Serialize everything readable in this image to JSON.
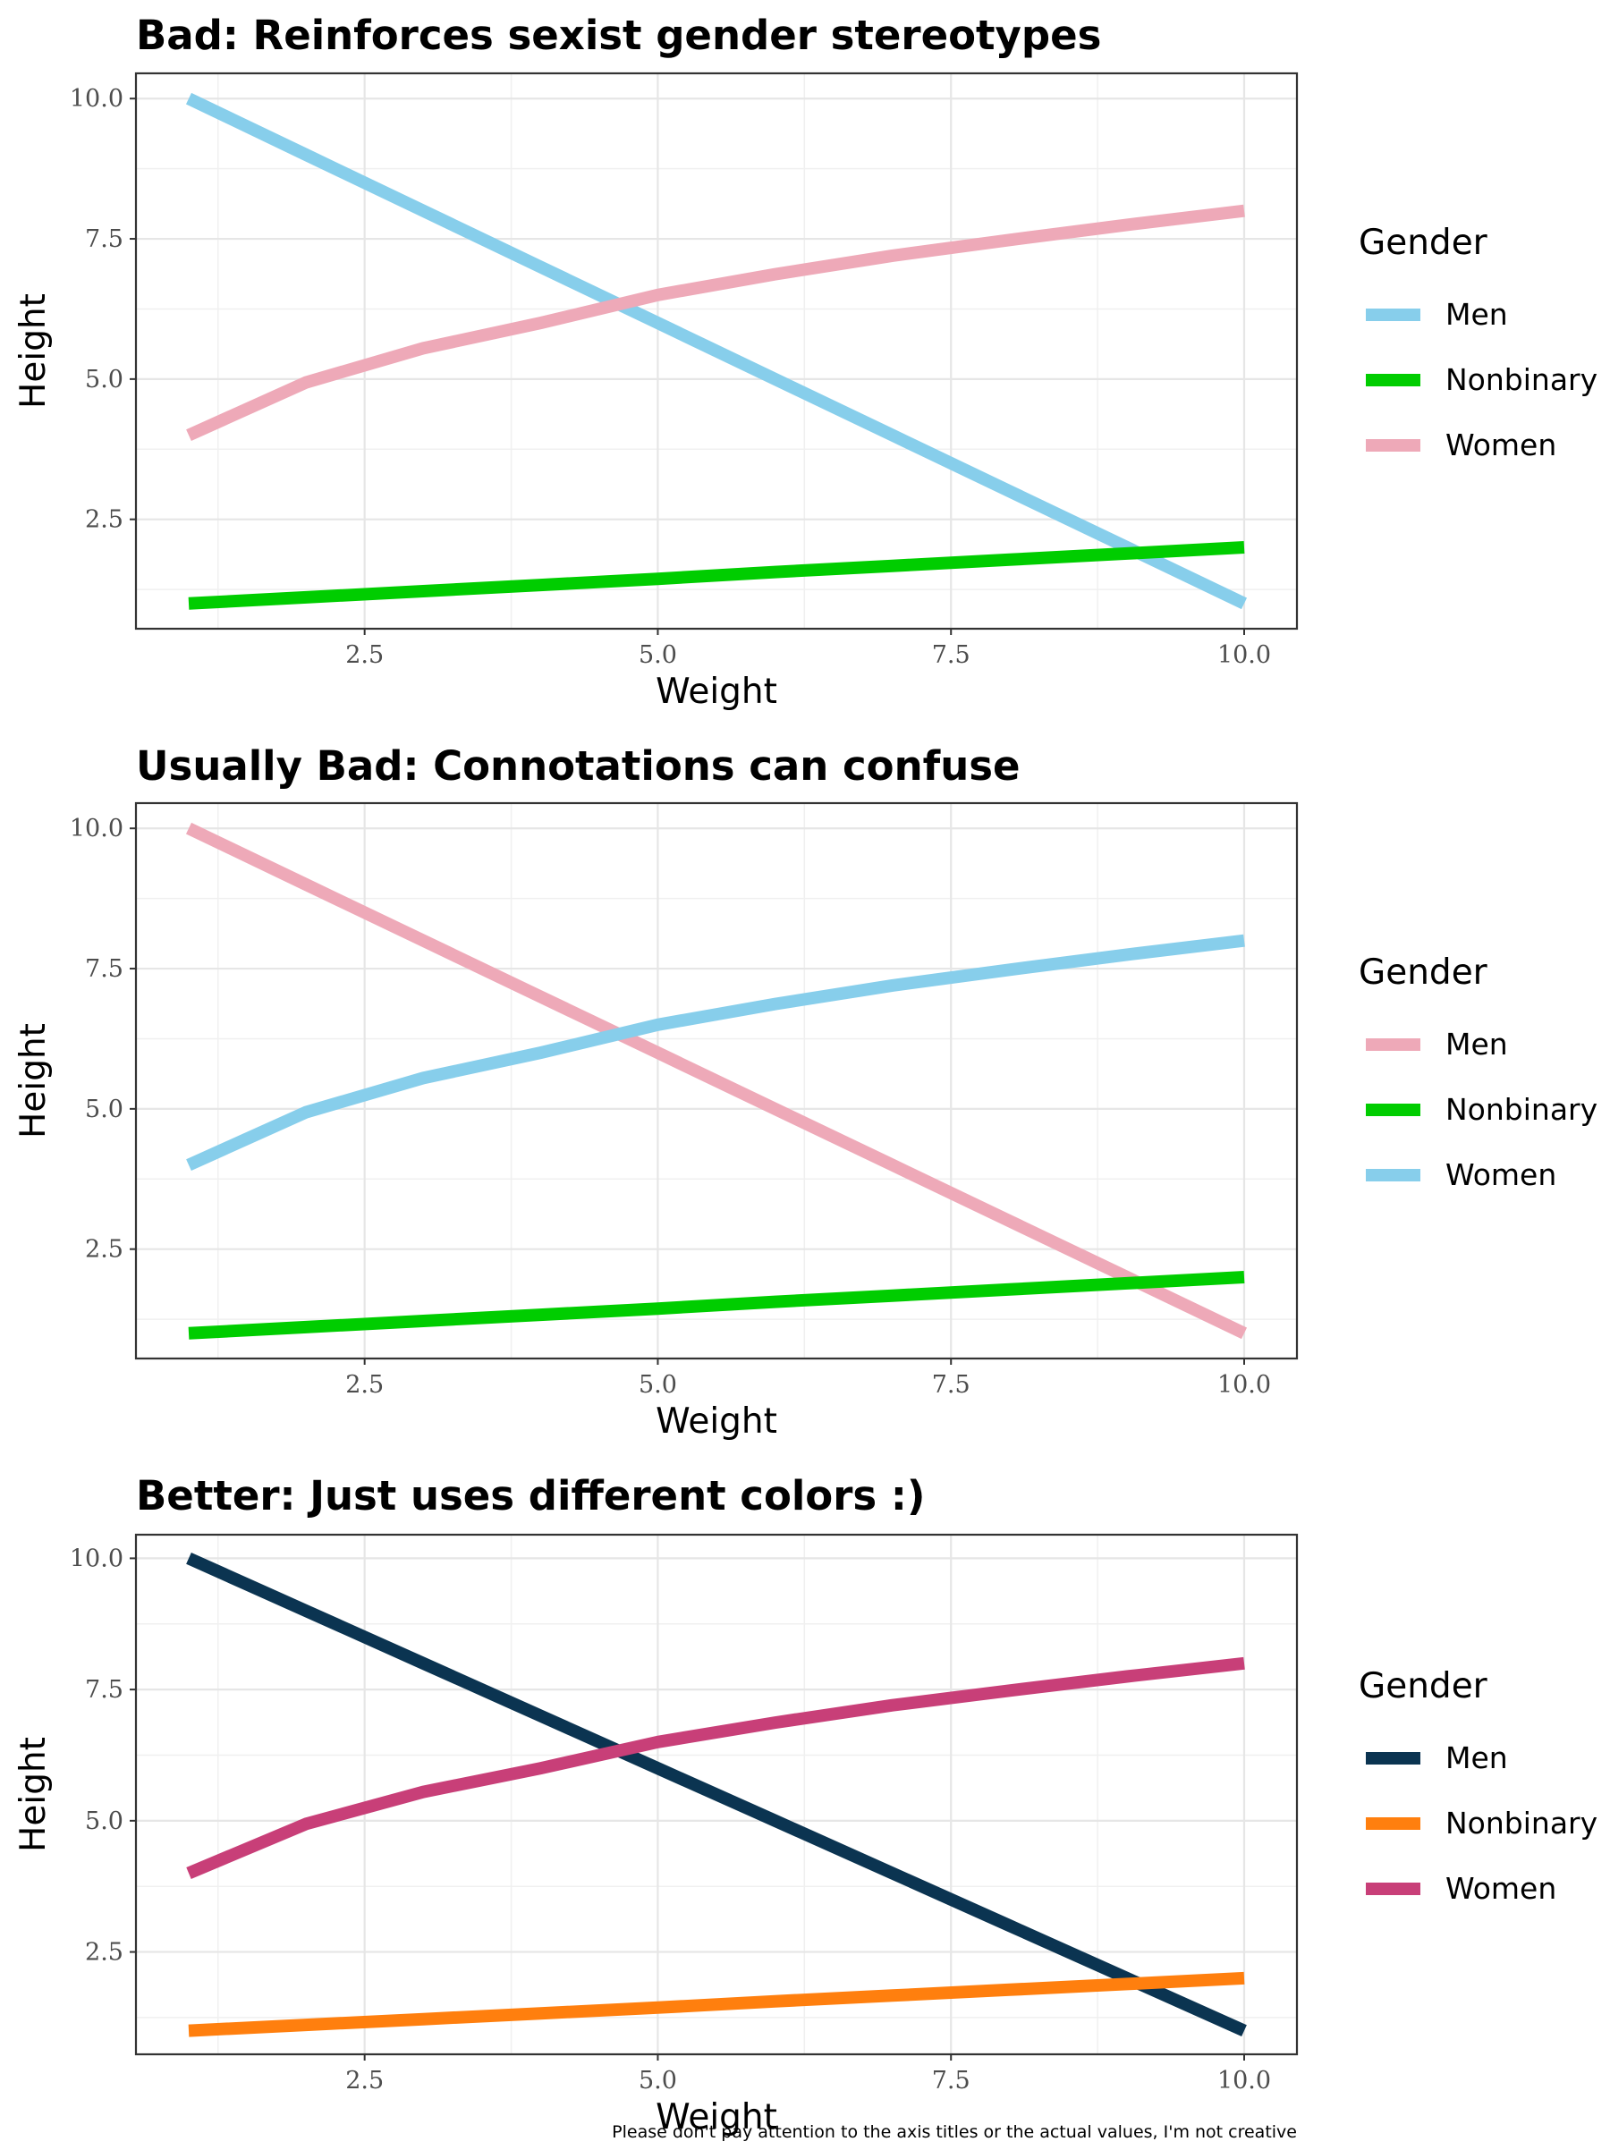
{
  "chart_data": [
    {
      "type": "line",
      "title": "Bad: Reinforces sexist gender stereotypes",
      "xlabel": "Weight",
      "ylabel": "Height",
      "xlim": [
        0.55,
        10.45
      ],
      "ylim": [
        0.55,
        10.45
      ],
      "x_ticks": [
        2.5,
        5.0,
        7.5,
        10.0
      ],
      "y_ticks": [
        2.5,
        5.0,
        7.5,
        10.0
      ],
      "x_tick_labels": [
        "2.5",
        "5.0",
        "7.5",
        "10.0"
      ],
      "y_tick_labels": [
        "2.5",
        "5.0",
        "7.5",
        "10.0"
      ],
      "grid": true,
      "legend_title": "Gender",
      "legend_position": "right",
      "x": [
        1,
        2,
        3,
        4,
        5,
        6,
        7,
        8,
        9,
        10
      ],
      "series": [
        {
          "name": "Men",
          "color": "#87CEEB",
          "values": [
            10,
            9,
            8,
            7,
            6,
            5,
            4,
            3,
            2,
            1
          ]
        },
        {
          "name": "Nonbinary",
          "color": "#00CD00",
          "values": [
            1.0,
            1.11,
            1.22,
            1.33,
            1.44,
            1.56,
            1.67,
            1.78,
            1.89,
            2.0
          ]
        },
        {
          "name": "Women",
          "color": "#EEA9B8",
          "values": [
            4.0,
            4.94,
            5.55,
            6.0,
            6.5,
            6.87,
            7.2,
            7.48,
            7.75,
            8.0
          ]
        }
      ]
    },
    {
      "type": "line",
      "title": "Usually Bad: Connotations can confuse",
      "xlabel": "Weight",
      "ylabel": "Height",
      "xlim": [
        0.55,
        10.45
      ],
      "ylim": [
        0.55,
        10.45
      ],
      "x_ticks": [
        2.5,
        5.0,
        7.5,
        10.0
      ],
      "y_ticks": [
        2.5,
        5.0,
        7.5,
        10.0
      ],
      "x_tick_labels": [
        "2.5",
        "5.0",
        "7.5",
        "10.0"
      ],
      "y_tick_labels": [
        "2.5",
        "5.0",
        "7.5",
        "10.0"
      ],
      "grid": true,
      "legend_title": "Gender",
      "legend_position": "right",
      "x": [
        1,
        2,
        3,
        4,
        5,
        6,
        7,
        8,
        9,
        10
      ],
      "series": [
        {
          "name": "Men",
          "color": "#EEA9B8",
          "values": [
            10,
            9,
            8,
            7,
            6,
            5,
            4,
            3,
            2,
            1
          ]
        },
        {
          "name": "Nonbinary",
          "color": "#00CD00",
          "values": [
            1.0,
            1.11,
            1.22,
            1.33,
            1.44,
            1.56,
            1.67,
            1.78,
            1.89,
            2.0
          ]
        },
        {
          "name": "Women",
          "color": "#87CEEB",
          "values": [
            4.0,
            4.94,
            5.55,
            6.0,
            6.5,
            6.87,
            7.2,
            7.48,
            7.75,
            8.0
          ]
        }
      ]
    },
    {
      "type": "line",
      "title": "Better: Just uses different colors :)",
      "xlabel": "Weight",
      "ylabel": "Height",
      "xlim": [
        0.55,
        10.45
      ],
      "ylim": [
        0.55,
        10.45
      ],
      "x_ticks": [
        2.5,
        5.0,
        7.5,
        10.0
      ],
      "y_ticks": [
        2.5,
        5.0,
        7.5,
        10.0
      ],
      "x_tick_labels": [
        "2.5",
        "5.0",
        "7.5",
        "10.0"
      ],
      "y_tick_labels": [
        "2.5",
        "5.0",
        "7.5",
        "10.0"
      ],
      "grid": true,
      "legend_title": "Gender",
      "legend_position": "right",
      "x": [
        1,
        2,
        3,
        4,
        5,
        6,
        7,
        8,
        9,
        10
      ],
      "series": [
        {
          "name": "Men",
          "color": "#0B3451",
          "values": [
            10,
            9,
            8,
            7,
            6,
            5,
            4,
            3,
            2,
            1
          ]
        },
        {
          "name": "Nonbinary",
          "color": "#FF7F0E",
          "values": [
            1.0,
            1.11,
            1.22,
            1.33,
            1.44,
            1.56,
            1.67,
            1.78,
            1.89,
            2.0
          ]
        },
        {
          "name": "Women",
          "color": "#C83F78",
          "values": [
            4.0,
            4.94,
            5.55,
            6.0,
            6.5,
            6.87,
            7.2,
            7.48,
            7.75,
            8.0
          ]
        }
      ]
    }
  ],
  "caption": "Please don't pay attention to the axis titles or the actual values, I'm not creative"
}
